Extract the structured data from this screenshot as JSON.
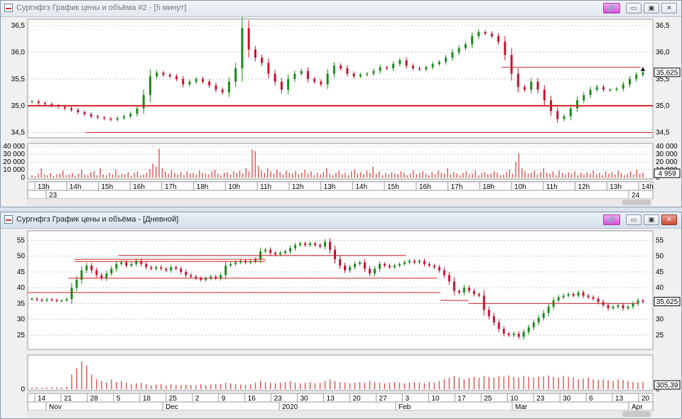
{
  "windows": [
    {
      "title": "Сургнфгз График цены и объёма #2 - [5 минут]",
      "active": false,
      "controls": {
        "link": "🔗",
        "minimize": "▭",
        "restore": "▣",
        "close": "✕"
      },
      "colors": {
        "up": "#1a8a1a",
        "down": "#c8102e",
        "line": "#d42020",
        "volume": "#e05050"
      },
      "chart_data": {
        "type": "candlestick",
        "price_axis": {
          "ticks": [
            "36,5",
            "36,0",
            "35,5",
            "35,0",
            "34,5"
          ],
          "range": [
            34.4,
            36.62
          ]
        },
        "last_price_label": "35,625",
        "price_series": [
          35.08,
          35.05,
          35.03,
          35.0,
          34.98,
          34.95,
          34.92,
          34.88,
          34.84,
          34.8,
          34.78,
          34.76,
          34.74,
          34.77,
          34.8,
          34.85,
          34.95,
          35.2,
          35.55,
          35.62,
          35.58,
          35.55,
          35.5,
          35.4,
          35.45,
          35.5,
          35.45,
          35.38,
          35.3,
          35.25,
          35.45,
          35.7,
          36.45,
          36.05,
          35.9,
          35.8,
          35.6,
          35.45,
          35.3,
          35.5,
          35.6,
          35.65,
          35.5,
          35.45,
          35.4,
          35.6,
          35.75,
          35.7,
          35.6,
          35.55,
          35.58,
          35.6,
          35.65,
          35.72,
          35.7,
          35.78,
          35.85,
          35.75,
          35.7,
          35.68,
          35.72,
          35.78,
          35.82,
          35.9,
          36.0,
          36.08,
          36.15,
          36.3,
          36.38,
          36.35,
          36.3,
          36.2,
          35.95,
          35.6,
          35.35,
          35.3,
          35.45,
          35.3,
          35.1,
          34.9,
          34.75,
          34.8,
          34.95,
          35.1,
          35.2,
          35.3,
          35.35,
          35.3,
          35.3,
          35.32,
          35.4,
          35.5,
          35.58,
          35.625
        ],
        "horizontal_lines": [
          {
            "value": 35.0,
            "from": 0.0,
            "to": 1.0,
            "width": 2
          },
          {
            "value": 34.5,
            "from": 0.093,
            "to": 1.0,
            "width": 1
          },
          {
            "value": 35.72,
            "from": 0.758,
            "to": 0.98,
            "width": 1
          }
        ],
        "marker": {
          "index": 93,
          "symbol": "▲"
        },
        "volume_axis": {
          "ticks": [
            "40 000",
            "30 000",
            "20 000",
            "10 000",
            "0"
          ],
          "range": [
            0,
            42000
          ]
        },
        "last_volume_label": "4 959",
        "volume_series": [
          3000,
          2000,
          5000,
          12000,
          4000,
          3000,
          6000,
          2000,
          4000,
          5000,
          9000,
          3000,
          4000,
          6000,
          2000,
          5000,
          10000,
          4000,
          3000,
          7000,
          8000,
          3000,
          12000,
          4000,
          3000,
          6000,
          4000,
          10000,
          3000,
          5000,
          4000,
          7000,
          2000,
          6000,
          8000,
          3000,
          4000,
          6000,
          11000,
          18000,
          14000,
          37000,
          12000,
          8000,
          5000,
          9000,
          6000,
          4000,
          7000,
          3000,
          8000,
          5000,
          6000,
          4000,
          9000,
          6000,
          5000,
          4000,
          8000,
          10000,
          5000,
          3000,
          6000,
          7000,
          4000,
          8000,
          6000,
          9000,
          5000,
          12000,
          8000,
          36000,
          34000,
          15000,
          9000,
          6000,
          12000,
          8000,
          5000,
          10000,
          7000,
          4000,
          9000,
          6000,
          5000,
          8000,
          4000,
          6000,
          10000,
          5000,
          8000,
          3000,
          6000,
          4000,
          7000,
          12000,
          5000,
          3000,
          6000,
          9000,
          4000,
          6000,
          3000,
          8000,
          11000,
          5000,
          7000,
          4000,
          9000,
          6000,
          14000,
          5000,
          8000,
          3000,
          6000,
          4000,
          7000,
          5000,
          4000,
          8000,
          6000,
          3000,
          5000,
          9000,
          4000,
          6000,
          8000,
          5000,
          3000,
          7000,
          4000,
          9000,
          6000,
          5000,
          12000,
          4000,
          7000,
          5000,
          3000,
          6000,
          8000,
          4000,
          5000,
          9000,
          3000,
          6000,
          7000,
          4000,
          5000,
          8000,
          6000,
          3000,
          4000,
          7000,
          10000,
          5000,
          20000,
          31000,
          12000,
          8000,
          5000,
          6000,
          9000,
          4000,
          7000,
          12000,
          6000,
          5000,
          8000,
          3000,
          9000,
          6000,
          4000,
          7000,
          5000,
          8000,
          3000,
          6000,
          4000,
          7000,
          5000,
          9000,
          4000,
          6000,
          3000,
          8000,
          5000,
          7000,
          4000,
          9000,
          6000,
          3000,
          5000,
          8000,
          4000,
          10000,
          5000,
          6000
        ],
        "time_labels": [
          "13h",
          "14h",
          "15h",
          "16h",
          "17h",
          "18h",
          "10h",
          "11h",
          "12h",
          "13h",
          "14h",
          "15h",
          "16h",
          "17h",
          "18h",
          "10h",
          "11h",
          "12h",
          "13h",
          "14h"
        ],
        "date_labels": [
          "23",
          "24"
        ]
      }
    },
    {
      "title": "Сургнфгз График цены и объёма - [Дневной]",
      "active": true,
      "controls": {
        "link": "🔗",
        "minimize": "▭",
        "restore": "▣",
        "close": "✕"
      },
      "colors": {
        "up": "#1a8a1a",
        "down": "#c8102e",
        "line": "#d42020",
        "volume": "#e05050"
      },
      "chart_data": {
        "type": "candlestick",
        "price_axis": {
          "ticks": [
            "55",
            "50",
            "45",
            "40",
            "35",
            "30",
            "25"
          ],
          "range": [
            20.5,
            58.0
          ]
        },
        "last_price_label": "35,625",
        "price_series": [
          36.5,
          36.2,
          36.0,
          36.3,
          36.1,
          35.9,
          36.0,
          36.4,
          40.0,
          42.5,
          45.5,
          47.0,
          45.5,
          44.0,
          43.0,
          44.5,
          46.0,
          47.5,
          48.0,
          47.0,
          47.5,
          48.5,
          47.5,
          46.5,
          46.0,
          46.5,
          46.0,
          45.5,
          46.5,
          46.0,
          45.0,
          44.0,
          43.5,
          43.0,
          42.5,
          43.0,
          43.5,
          43.0,
          44.0,
          47.0,
          47.5,
          48.0,
          48.5,
          48.0,
          48.3,
          49.0,
          51.5,
          52.0,
          51.0,
          50.5,
          51.0,
          51.5,
          52.5,
          53.5,
          54.0,
          53.5,
          54.0,
          53.5,
          53.0,
          54.5,
          52.0,
          49.0,
          47.0,
          45.5,
          46.5,
          47.5,
          48.0,
          46.0,
          44.5,
          46.0,
          47.5,
          47.0,
          46.5,
          47.0,
          47.5,
          48.0,
          48.5,
          48.0,
          48.5,
          47.5,
          47.0,
          46.5,
          45.5,
          44.0,
          42.0,
          39.0,
          38.5,
          40.0,
          39.0,
          38.0,
          37.5,
          33.0,
          31.0,
          29.0,
          27.0,
          25.5,
          25.0,
          25.5,
          24.5,
          26.0,
          27.5,
          29.0,
          30.5,
          32.0,
          34.0,
          36.0,
          37.0,
          37.5,
          38.0,
          37.5,
          38.5,
          37.5,
          37.0,
          36.5,
          35.5,
          34.5,
          33.5,
          34.0,
          34.5,
          33.5,
          34.0,
          35.0,
          36.0,
          35.625
        ],
        "horizontal_lines": [
          {
            "value": 38.5,
            "from": 0.0,
            "to": 0.66,
            "width": 1
          },
          {
            "value": 43.0,
            "from": 0.065,
            "to": 0.655,
            "width": 1
          },
          {
            "value": 48.3,
            "from": 0.075,
            "to": 0.38,
            "width": 1
          },
          {
            "value": 49.0,
            "from": 0.075,
            "to": 0.38,
            "width": 1
          },
          {
            "value": 50.2,
            "from": 0.145,
            "to": 0.605,
            "width": 1
          },
          {
            "value": 36.0,
            "from": 0.66,
            "to": 0.705,
            "width": 1
          },
          {
            "value": 35.0,
            "from": 0.705,
            "to": 0.975,
            "width": 1
          }
        ],
        "volume_axis": {
          "ticks": [
            "0"
          ],
          "range": [
            0,
            1
          ]
        },
        "last_volume_label": "305,39",
        "volume_series": [
          0.05,
          0.05,
          0.04,
          0.05,
          0.06,
          0.05,
          0.06,
          0.08,
          0.45,
          0.65,
          0.85,
          0.72,
          0.45,
          0.3,
          0.25,
          0.2,
          0.3,
          0.22,
          0.25,
          0.2,
          0.15,
          0.18,
          0.2,
          0.15,
          0.12,
          0.14,
          0.16,
          0.12,
          0.15,
          0.13,
          0.12,
          0.14,
          0.13,
          0.12,
          0.15,
          0.12,
          0.14,
          0.15,
          0.16,
          0.2,
          0.18,
          0.15,
          0.14,
          0.13,
          0.15,
          0.2,
          0.25,
          0.22,
          0.2,
          0.18,
          0.2,
          0.22,
          0.25,
          0.2,
          0.18,
          0.2,
          0.22,
          0.18,
          0.2,
          0.25,
          0.3,
          0.25,
          0.22,
          0.2,
          0.18,
          0.2,
          0.22,
          0.2,
          0.25,
          0.22,
          0.2,
          0.18,
          0.2,
          0.22,
          0.2,
          0.18,
          0.2,
          0.22,
          0.2,
          0.18,
          0.22,
          0.2,
          0.25,
          0.3,
          0.35,
          0.4,
          0.35,
          0.3,
          0.35,
          0.38,
          0.35,
          0.4,
          0.38,
          0.35,
          0.4,
          0.38,
          0.42,
          0.38,
          0.35,
          0.4,
          0.38,
          0.35,
          0.38,
          0.4,
          0.42,
          0.38,
          0.35,
          0.4,
          0.38,
          0.35,
          0.3,
          0.32,
          0.35,
          0.3,
          0.28,
          0.3,
          0.28,
          0.25,
          0.3,
          0.28,
          0.25,
          0.22,
          0.2,
          0.22
        ],
        "time_labels": [
          "14",
          "21",
          "28",
          "5",
          "18",
          "25",
          "2",
          "9",
          "16",
          "23",
          "30",
          "13",
          "20",
          "27",
          "3",
          "10",
          "17",
          "25",
          "10",
          "23",
          "30",
          "6",
          "13",
          "20"
        ],
        "date_labels": [
          "Nov",
          "Dec",
          "2020",
          "Feb",
          "Mar",
          "Apr"
        ]
      }
    }
  ]
}
